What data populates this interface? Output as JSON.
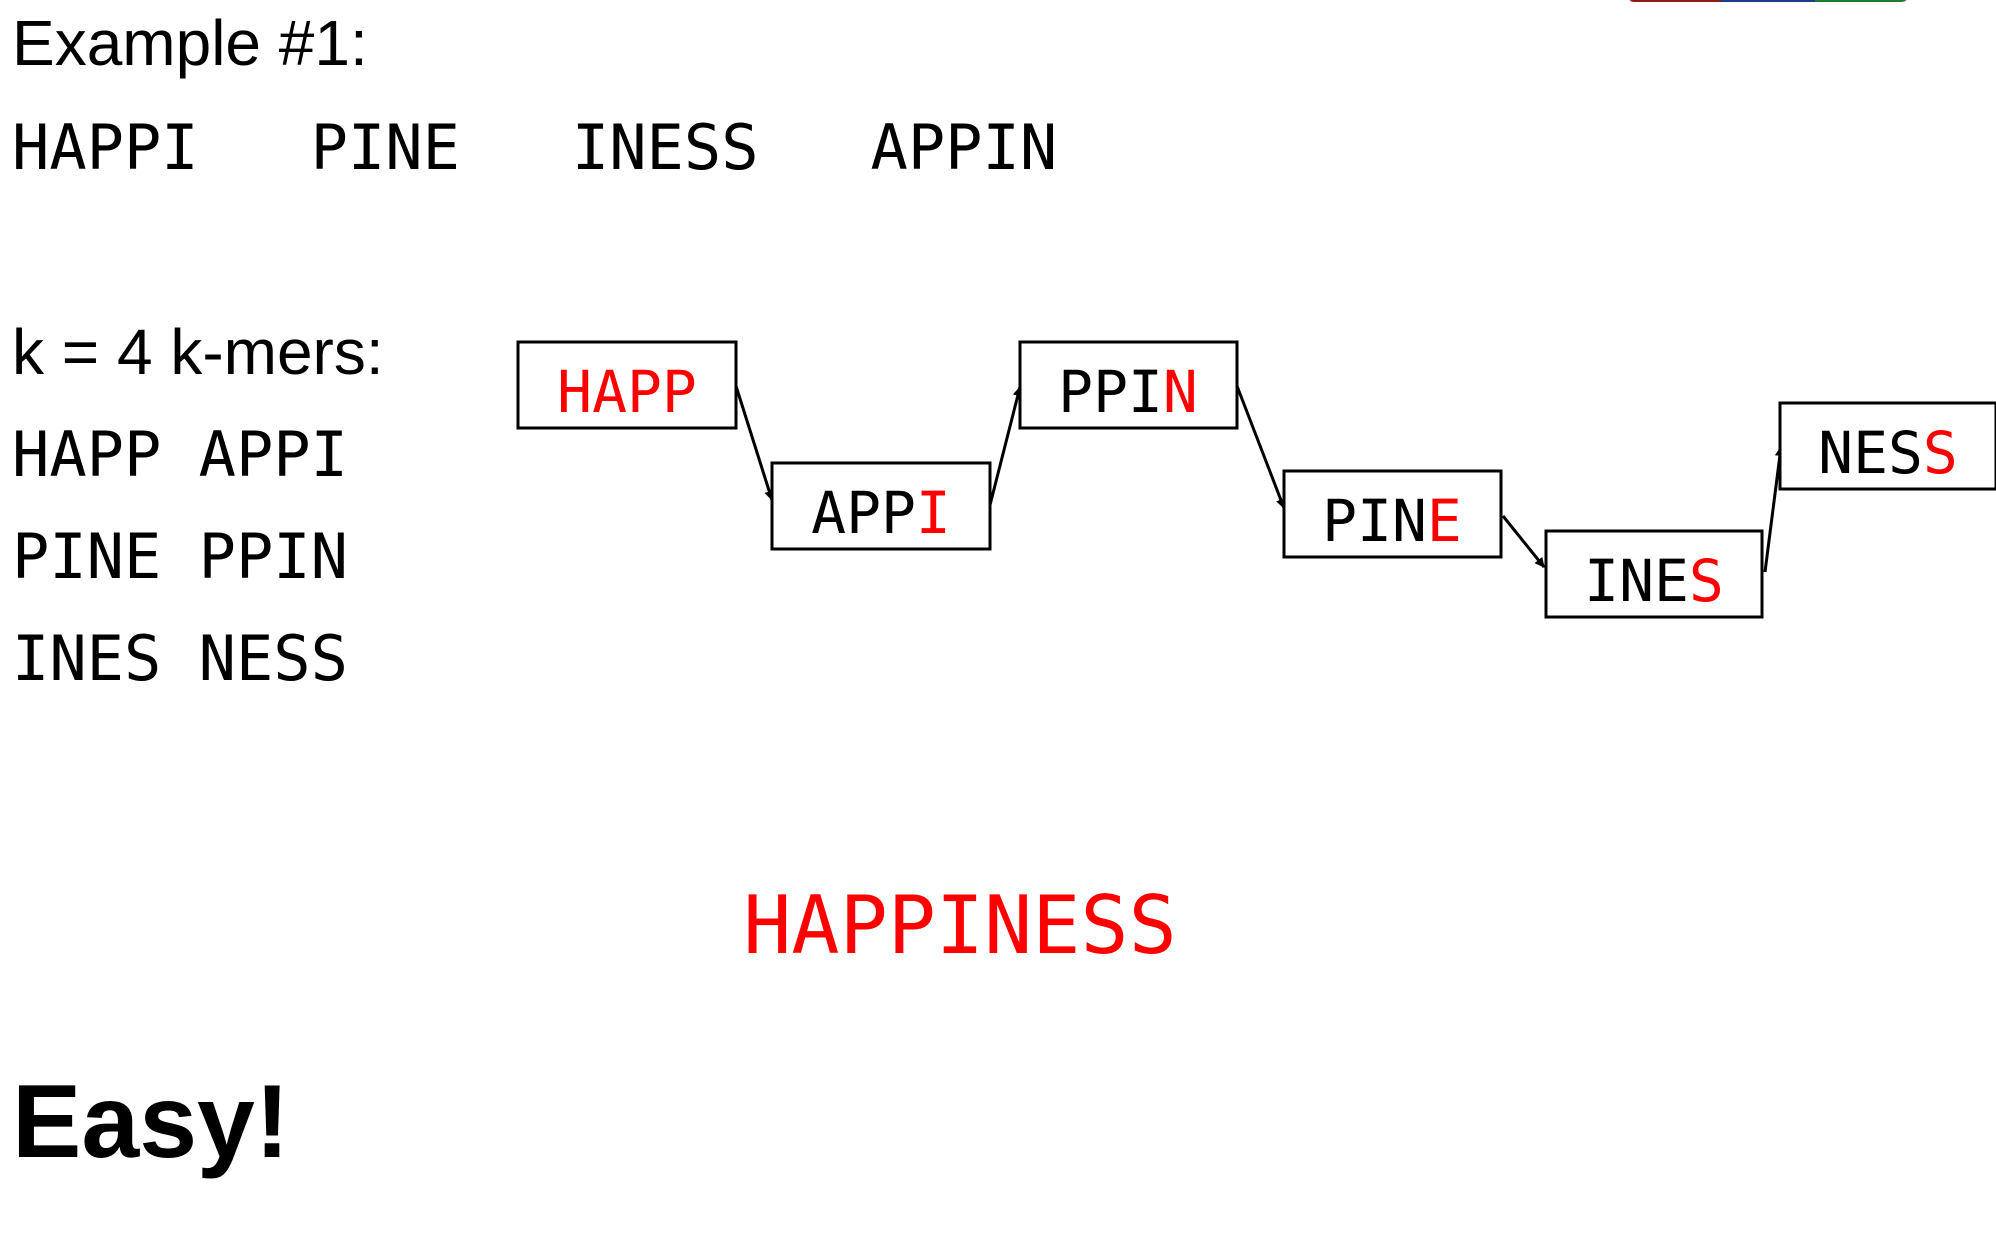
{
  "slide": {
    "example_title": "Example #1:",
    "reads": "HAPPI   PINE   INESS   APPIN",
    "k_label": "k = 4 k-mers:",
    "kmer_lines": [
      "HAPP APPI",
      "PINE PPIN",
      "INES NESS"
    ],
    "result": "HAPPINESS",
    "conclusion": "Easy!"
  },
  "graph": {
    "nodes": [
      {
        "id": "happ",
        "prefix": "",
        "highlight": "HAPP"
      },
      {
        "id": "appi",
        "prefix": "APP",
        "highlight": "I"
      },
      {
        "id": "ppin",
        "prefix": "PPI",
        "highlight": "N"
      },
      {
        "id": "pine",
        "prefix": "PIN",
        "highlight": "E"
      },
      {
        "id": "ines",
        "prefix": "INE",
        "highlight": "S"
      },
      {
        "id": "ness",
        "prefix": "NES",
        "highlight": "S"
      }
    ],
    "edges": [
      [
        "happ",
        "appi"
      ],
      [
        "appi",
        "ppin"
      ],
      [
        "ppin",
        "pine"
      ],
      [
        "pine",
        "ines"
      ],
      [
        "ines",
        "ness"
      ]
    ]
  },
  "colors": {
    "highlight": "#ff0000",
    "text": "#000000",
    "logo": [
      "#8b1a1a",
      "#1a3c8b",
      "#1f7a2e"
    ]
  }
}
